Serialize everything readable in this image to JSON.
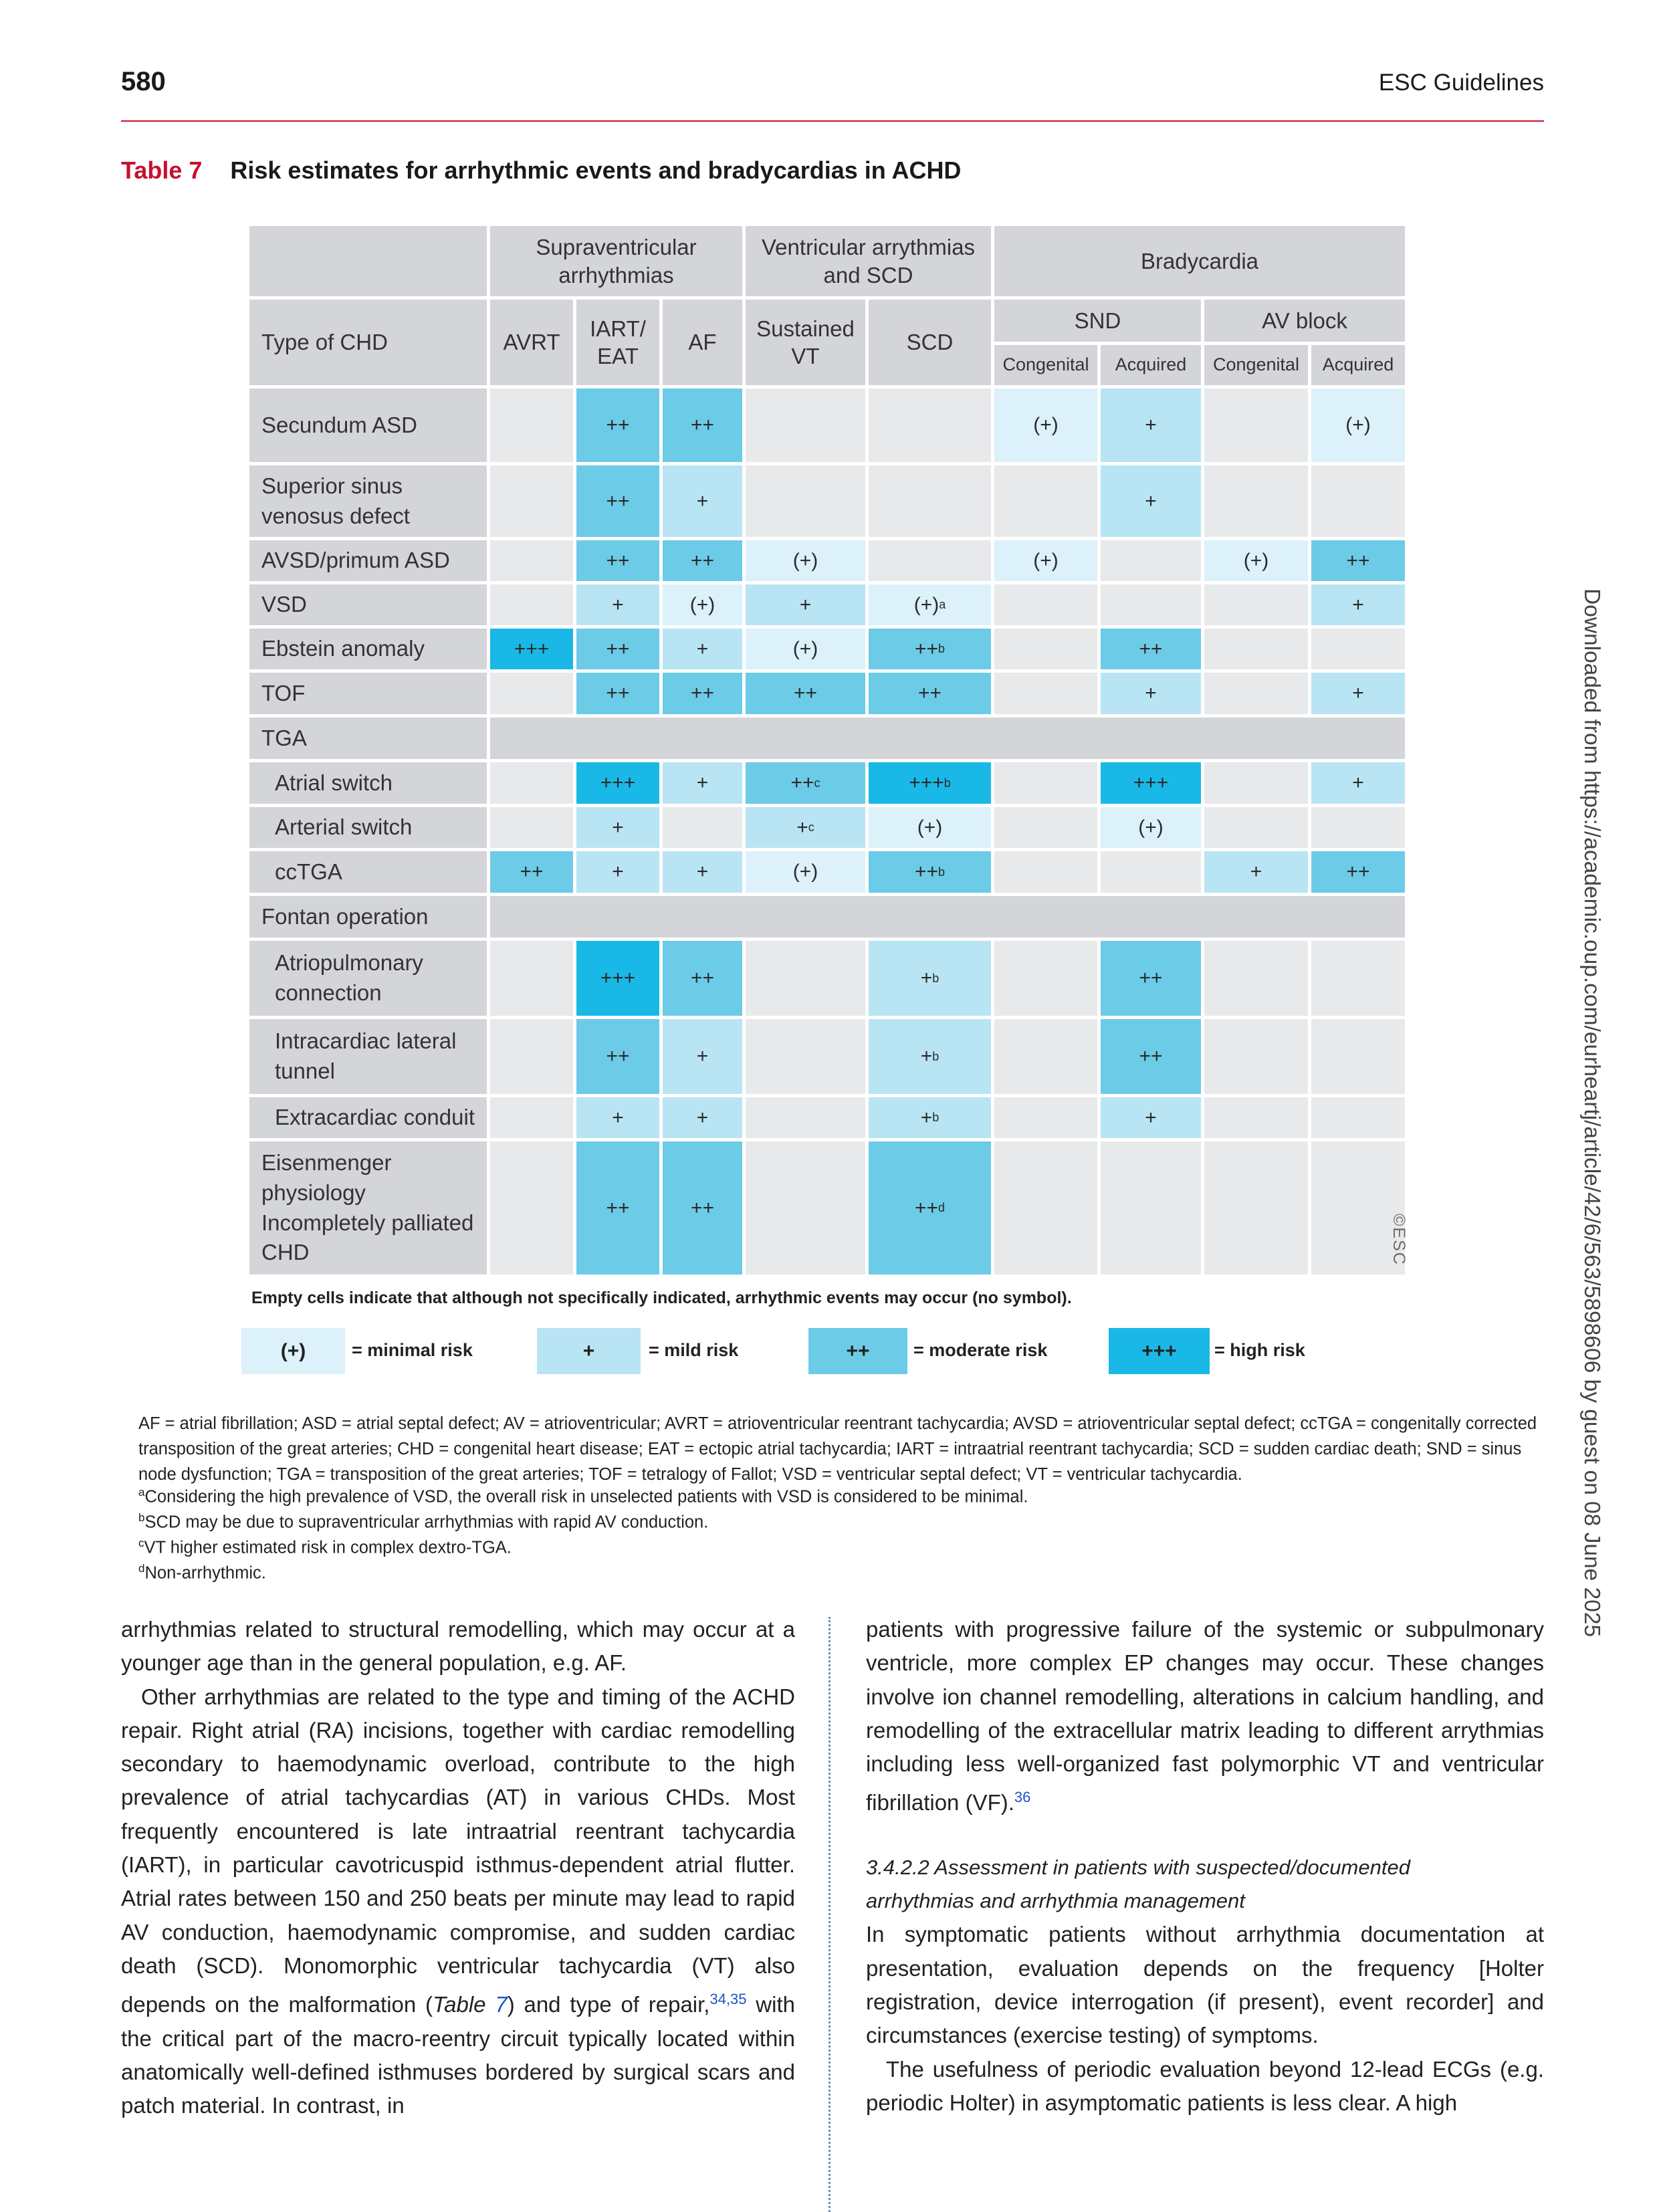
{
  "header": {
    "page_number": "580",
    "running_head": "ESC Guidelines"
  },
  "table": {
    "number": "Table 7",
    "title": "Risk estimates for arrhythmic events and bradycardias in ACHD",
    "group_headers": {
      "supra": "Supraventricular arrhythmias",
      "vent": "Ventricular arrythmias and SCD",
      "brady": "Bradycardia"
    },
    "column_headers": {
      "type": "Type of CHD",
      "avrt": "AVRT",
      "iart": "IART/ EAT",
      "af": "AF",
      "svt": "Sustained VT",
      "scd": "SCD",
      "snd": "SND",
      "avblock": "AV block",
      "snd_cong": "Congenital",
      "snd_acq": "Acquired",
      "av_cong": "Congenital",
      "av_acq": "Acquired"
    },
    "rows": [
      {
        "label": "Secundum ASD",
        "cells": [
          "",
          "++",
          "++",
          "",
          "",
          "(+)",
          "+",
          "",
          "(+)"
        ],
        "levels": [
          "",
          "moderate",
          "moderate",
          "",
          "",
          "minimal",
          "mild",
          "",
          "minimal"
        ]
      },
      {
        "label": "Superior sinus venosus defect",
        "cells": [
          "",
          "++",
          "+",
          "",
          "",
          "",
          "+",
          "",
          ""
        ],
        "levels": [
          "",
          "moderate",
          "mild",
          "",
          "",
          "",
          "mild",
          "",
          ""
        ]
      },
      {
        "label": "AVSD/primum ASD",
        "cells": [
          "",
          "++",
          "++",
          "(+)",
          "",
          "(+)",
          "",
          "(+)",
          "++"
        ],
        "levels": [
          "",
          "moderate",
          "moderate",
          "minimal",
          "",
          "minimal",
          "",
          "minimal",
          "moderate"
        ]
      },
      {
        "label": "VSD",
        "cells": [
          "",
          "+",
          "(+)",
          "+",
          "(+)",
          "",
          "",
          "",
          "+"
        ],
        "sups": [
          "",
          "",
          "",
          "",
          "a",
          "",
          "",
          "",
          ""
        ],
        "levels": [
          "",
          "mild",
          "minimal",
          "mild",
          "minimal",
          "",
          "",
          "",
          "mild"
        ]
      },
      {
        "label": "Ebstein anomaly",
        "cells": [
          "+++",
          "++",
          "+",
          "(+)",
          "++",
          "",
          "++",
          "",
          ""
        ],
        "sups": [
          "",
          "",
          "",
          "",
          "b",
          "",
          "",
          "",
          ""
        ],
        "levels": [
          "high",
          "moderate",
          "mild",
          "minimal",
          "moderate",
          "",
          "moderate",
          "",
          ""
        ]
      },
      {
        "label": "TOF",
        "cells": [
          "",
          "++",
          "++",
          "++",
          "++",
          "",
          "+",
          "",
          "+"
        ],
        "levels": [
          "",
          "moderate",
          "moderate",
          "moderate",
          "moderate",
          "",
          "mild",
          "",
          "mild"
        ]
      },
      {
        "label": "TGA",
        "group": true
      },
      {
        "label": "Atrial switch",
        "indent": true,
        "cells": [
          "",
          "+++",
          "+",
          "++",
          "+++",
          "",
          "+++",
          "",
          "+"
        ],
        "sups": [
          "",
          "",
          "",
          "c",
          "b",
          "",
          "",
          "",
          ""
        ],
        "levels": [
          "",
          "high",
          "mild",
          "moderate",
          "high",
          "",
          "high",
          "",
          "mild"
        ]
      },
      {
        "label": "Arterial switch",
        "indent": true,
        "cells": [
          "",
          "+",
          "",
          "+",
          "(+)",
          "",
          "(+)",
          "",
          ""
        ],
        "sups": [
          "",
          "",
          "",
          "c",
          "",
          "",
          "",
          "",
          ""
        ],
        "levels": [
          "",
          "mild",
          "",
          "mild",
          "minimal",
          "",
          "minimal",
          "",
          ""
        ]
      },
      {
        "label": "ccTGA",
        "indent": true,
        "cells": [
          "++",
          "+",
          "+",
          "(+)",
          "++",
          "",
          "",
          "+",
          "++"
        ],
        "sups": [
          "",
          "",
          "",
          "",
          "b",
          "",
          "",
          "",
          ""
        ],
        "levels": [
          "moderate",
          "mild",
          "mild",
          "minimal",
          "moderate",
          "",
          "",
          "mild",
          "moderate"
        ]
      },
      {
        "label": "Fontan operation",
        "group": true
      },
      {
        "label": "Atriopulmonary connection",
        "indent": true,
        "cells": [
          "",
          "+++",
          "++",
          "",
          "+",
          "",
          "++",
          "",
          ""
        ],
        "sups": [
          "",
          "",
          "",
          "",
          "b",
          "",
          "",
          "",
          ""
        ],
        "levels": [
          "",
          "high",
          "moderate",
          "",
          "mild",
          "",
          "moderate",
          "",
          ""
        ]
      },
      {
        "label": "Intracardiac lateral tunnel",
        "indent": true,
        "cells": [
          "",
          "++",
          "+",
          "",
          "+",
          "",
          "++",
          "",
          ""
        ],
        "sups": [
          "",
          "",
          "",
          "",
          "b",
          "",
          "",
          "",
          ""
        ],
        "levels": [
          "",
          "moderate",
          "mild",
          "",
          "mild",
          "",
          "moderate",
          "",
          ""
        ]
      },
      {
        "label": "Extracardiac conduit",
        "indent": true,
        "cells": [
          "",
          "+",
          "+",
          "",
          "+",
          "",
          "+",
          "",
          ""
        ],
        "sups": [
          "",
          "",
          "",
          "",
          "b",
          "",
          "",
          "",
          ""
        ],
        "levels": [
          "",
          "mild",
          "mild",
          "",
          "mild",
          "",
          "mild",
          "",
          ""
        ]
      },
      {
        "label": "Eisenmenger physiology Incompletely palliated CHD",
        "cells": [
          "",
          "++",
          "++",
          "",
          "++",
          "",
          "",
          "",
          ""
        ],
        "sups": [
          "",
          "",
          "",
          "",
          "d",
          "",
          "",
          "",
          ""
        ],
        "levels": [
          "",
          "moderate",
          "moderate",
          "",
          "moderate",
          "",
          "",
          "",
          ""
        ]
      }
    ],
    "esc_mark": "©ESC",
    "empty_note": "Empty cells indicate that although not specifically indicated, arrhythmic events may occur (no symbol).",
    "legend": [
      {
        "symbol": "(+)",
        "label": "= minimal risk"
      },
      {
        "symbol": "+",
        "label": "= mild risk"
      },
      {
        "symbol": "++",
        "label": "= moderate risk"
      },
      {
        "symbol": "+++",
        "label": "= high risk"
      }
    ],
    "colors": {
      "minimal": "#dcf1fa",
      "mild": "#b9e4f4",
      "moderate": "#6ccbe7",
      "high": "#1ab8e6",
      "header_grey": "#d3d5d8",
      "empty": "#e8e9eb"
    }
  },
  "abbreviations": "AF = atrial fibrillation; ASD = atrial septal defect; AV = atrioventricular; AVRT = atrioventricular reentrant tachycardia; AVSD = atrioventricular septal defect; ccTGA = congenitally corrected transposition of the great arteries; CHD = congenital heart disease; EAT = ectopic atrial tachycardia; IART = intraatrial reentrant tachycardia; SCD = sudden cardiac death; SND = sinus node dysfunction; TGA = transposition of the great arteries; TOF = tetralogy of Fallot; VSD = ventricular septal defect; VT = ventricular tachycardia.",
  "footnotes": [
    {
      "mark": "a",
      "text": "Considering the high prevalence of VSD, the overall risk in unselected patients with VSD is considered to be minimal."
    },
    {
      "mark": "b",
      "text": "SCD may be due to supraventricular arrhythmias with rapid AV conduction."
    },
    {
      "mark": "c",
      "text": "VT higher estimated risk in complex dextro-TGA."
    },
    {
      "mark": "d",
      "text": "Non-arrhythmic."
    }
  ],
  "body": {
    "left_p1": "arrhythmias related to structural remodelling, which may occur at a younger age than in the general population, e.g. AF.",
    "left_p2a": "Other arrhythmias are related to the type and timing of the ACHD repair. Right atrial (RA) incisions, together with cardiac remodelling secondary to haemodynamic overload, contribute to the high prevalence of atrial tachycardias (AT) in various CHDs. Most frequently encountered is late intraatrial reentrant tachycardia (IART), in particular cavotricuspid isthmus-dependent atrial flutter. Atrial rates between 150 and 250 beats per minute may lead to rapid AV conduction, haemodynamic compromise, and sudden cardiac death (SCD). Monomorphic ventricular tachycardia (VT) also depends on the malformation (",
    "left_p2_table": "Table",
    "left_p2_table_num": "7",
    "left_p2b": ") and type of repair,",
    "left_p2_ref": "34,35",
    "left_p2c": " with the critical part of the macro-reentry circuit typically located within anatomically well-defined isthmuses bordered by surgical scars and patch material. In contrast, in",
    "right_p1": "patients with progressive failure of the systemic or subpulmonary ventricle, more complex EP changes may occur. These changes involve ion channel remodelling, alterations in calcium handling, and remodelling of the extracellular matrix leading to different arrythmias including less well-organized fast polymorphic VT and ventricular fibrillation (VF).",
    "right_p1_ref": "36",
    "section_title": "3.4.2.2 Assessment in patients with suspected/documented arrhythmias and arrhythmia management",
    "right_p2": "In symptomatic patients without arrhythmia documentation at presentation, evaluation depends on the frequency [Holter registration, device interrogation (if present), event recorder] and circumstances (exercise testing) of symptoms.",
    "right_p3": "The usefulness of periodic evaluation beyond 12-lead ECGs (e.g. periodic Holter) in asymptomatic patients is less clear. A high"
  },
  "side_note": "Downloaded from https://academic.oup.com/eurheartj/article/42/6/563/5898606 by guest on 08 June 2025"
}
